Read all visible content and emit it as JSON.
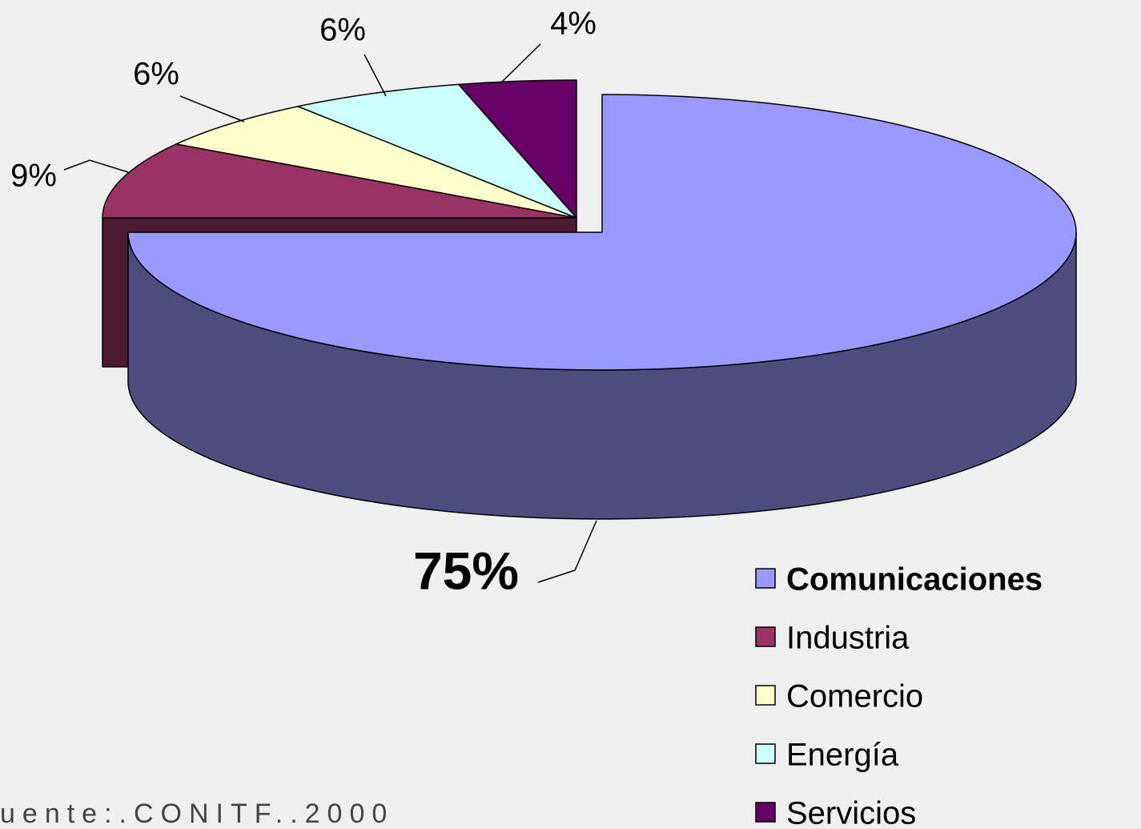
{
  "chart_data": {
    "type": "pie",
    "categories": [
      "Comunicaciones",
      "Industria",
      "Comercio",
      "Energía",
      "Servicios"
    ],
    "values": [
      75,
      9,
      6,
      6,
      4
    ],
    "value_labels": [
      "75%",
      "9%",
      "6%",
      "6%",
      "4%"
    ],
    "colors": [
      "#9999ff",
      "#993366",
      "#ffffcc",
      "#ccffff",
      "#660066"
    ],
    "footnote": "uente:.CONITF..2000"
  }
}
